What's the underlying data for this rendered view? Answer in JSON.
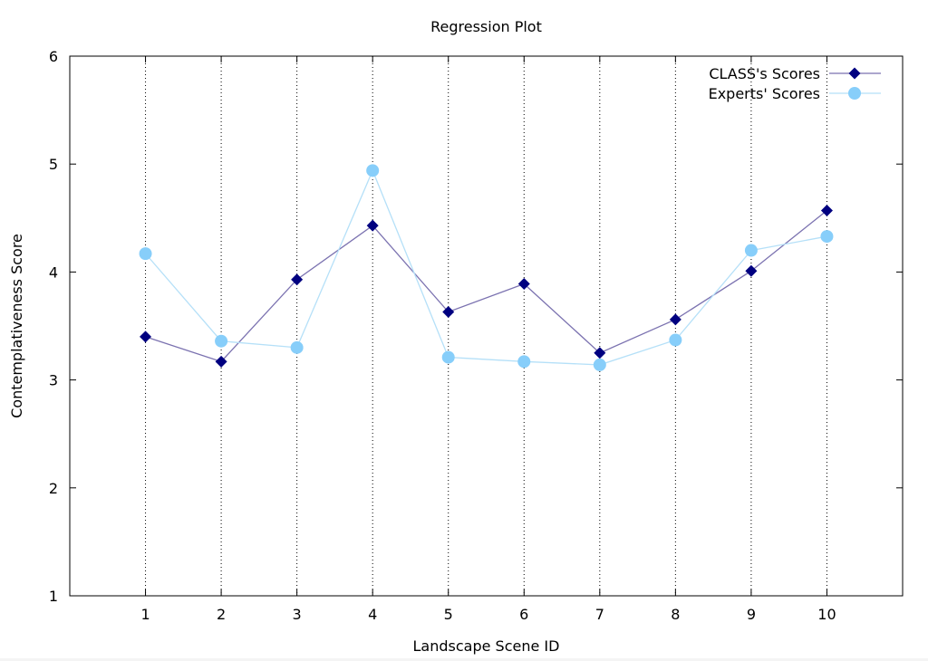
{
  "chart_data": {
    "type": "line",
    "title": "Regression Plot",
    "xlabel": "Landscape Scene ID",
    "ylabel": "Contemplativeness Score",
    "x": [
      1,
      2,
      3,
      4,
      5,
      6,
      7,
      8,
      9,
      10
    ],
    "xlim": [
      0,
      11
    ],
    "ylim": [
      1,
      6
    ],
    "xticks": [
      "1",
      "2",
      "3",
      "4",
      "5",
      "6",
      "7",
      "8",
      "9",
      "10"
    ],
    "yticks": [
      "1",
      "2",
      "3",
      "4",
      "5",
      "6"
    ],
    "grid": "vertical dotted",
    "legend_position": "top-right",
    "series": [
      {
        "name": "CLASS's Scores",
        "marker": "diamond",
        "color": "#000080",
        "line_color": "#7b72b0",
        "values": [
          3.4,
          3.17,
          3.93,
          4.43,
          3.63,
          3.89,
          3.25,
          3.56,
          4.01,
          4.57
        ]
      },
      {
        "name": "Experts' Scores",
        "marker": "circle",
        "color": "#87cefa",
        "line_color": "#b5e0f8",
        "values": [
          4.17,
          3.36,
          3.3,
          4.94,
          3.21,
          3.17,
          3.14,
          3.37,
          4.2,
          4.33
        ]
      }
    ]
  }
}
